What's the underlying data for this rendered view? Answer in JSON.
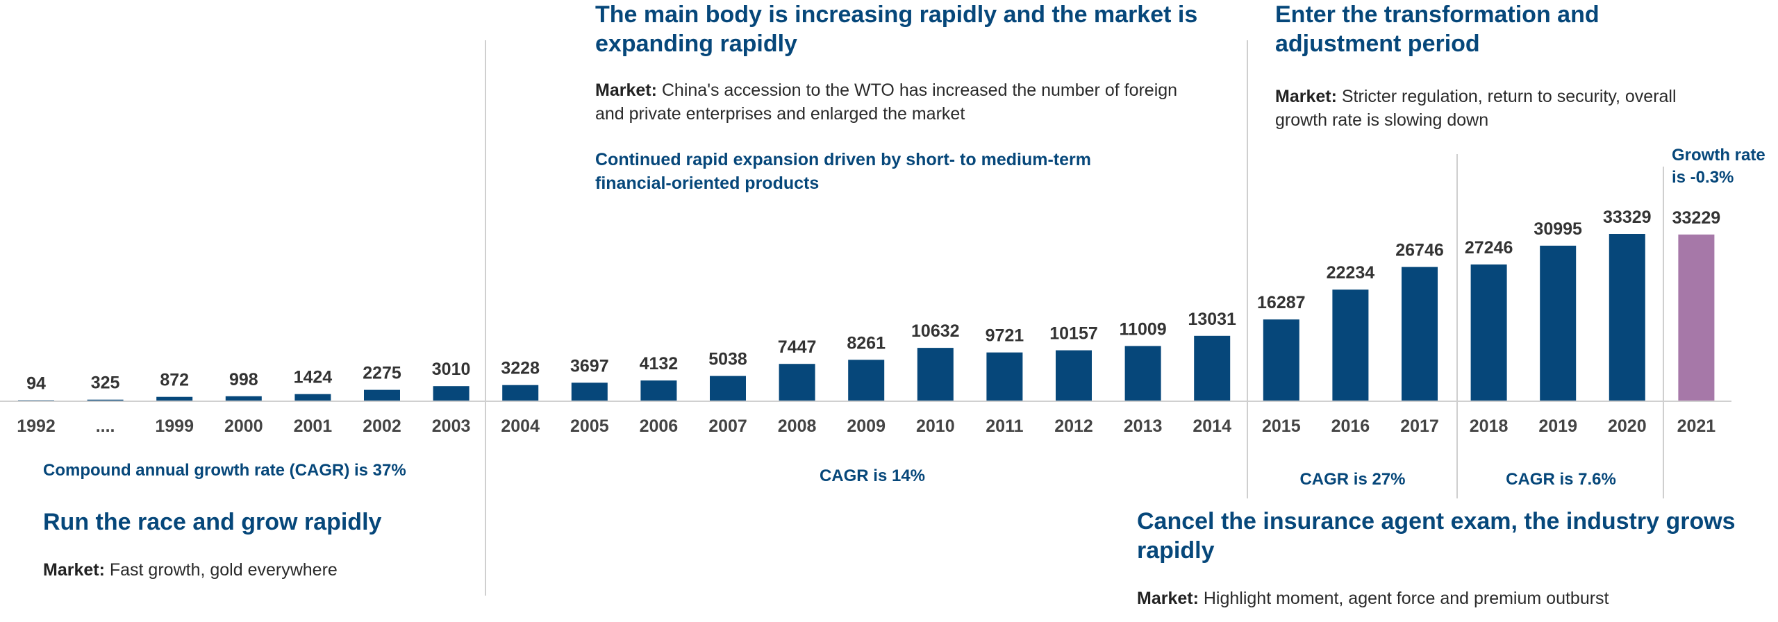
{
  "chart_data": {
    "type": "bar",
    "title": "",
    "xlabel": "",
    "ylabel": "",
    "ylim": [
      0,
      40000
    ],
    "grid": false,
    "categories": [
      "1992",
      "....",
      "1999",
      "2000",
      "2001",
      "2002",
      "2003",
      "2004",
      "2005",
      "2006",
      "2007",
      "2008",
      "2009",
      "2010",
      "2011",
      "2012",
      "2013",
      "2014",
      "2015",
      "2016",
      "2017",
      "2018",
      "2019",
      "2020",
      "2021"
    ],
    "values": [
      94,
      325,
      872,
      998,
      1424,
      2275,
      3010,
      3228,
      3697,
      4132,
      5038,
      7447,
      8261,
      10632,
      9721,
      10157,
      11009,
      13031,
      16287,
      22234,
      26746,
      27246,
      30995,
      33329,
      33229
    ],
    "value_labels": [
      "94",
      "325",
      "872",
      "998",
      "1424",
      "2275",
      "3010",
      "3228",
      "3697",
      "4132",
      "5038",
      "7447",
      "8261",
      "10632",
      "9721",
      "10157",
      "11009",
      "13031",
      "16287",
      "22234",
      "26746",
      "27246",
      "30995",
      "33329",
      "33229"
    ],
    "highlight_index": 24,
    "colors": {
      "bar": "#06477a",
      "highlight": "#a678a8",
      "accent_text": "#06477a",
      "axis": "#d0d0d0",
      "tick_text": "#444444",
      "divider": "#cfcfcf"
    }
  },
  "annotations": {
    "phase1": {
      "cagr": "Compound annual growth rate (CAGR) is 37%",
      "heading": "Run the race and grow rapidly",
      "market_label": "Market:",
      "market_text": " Fast growth, gold everywhere"
    },
    "phase2": {
      "heading": "The main body is increasing rapidly and the market is expanding rapidly",
      "market_label": "Market:",
      "market_text": " China's accession to the WTO has increased the number of foreign and private enterprises and enlarged the market",
      "note": "Continued rapid expansion driven by short- to medium-term financial-oriented products",
      "cagr": "CAGR is 14%"
    },
    "phase3": {
      "heading": "Cancel the insurance agent exam, the industry grows rapidly",
      "market_label": "Market:",
      "market_text": " Highlight moment, agent force and premium outburst",
      "cagr": "CAGR is 27%"
    },
    "phase4": {
      "heading": "Enter the transformation and adjustment period",
      "market_label": "Market:",
      "market_text": " Stricter regulation, return to security, overall growth rate is slowing down",
      "cagr": "CAGR is 7.6%"
    },
    "growth_2021": "Growth rate is -0.3%"
  }
}
